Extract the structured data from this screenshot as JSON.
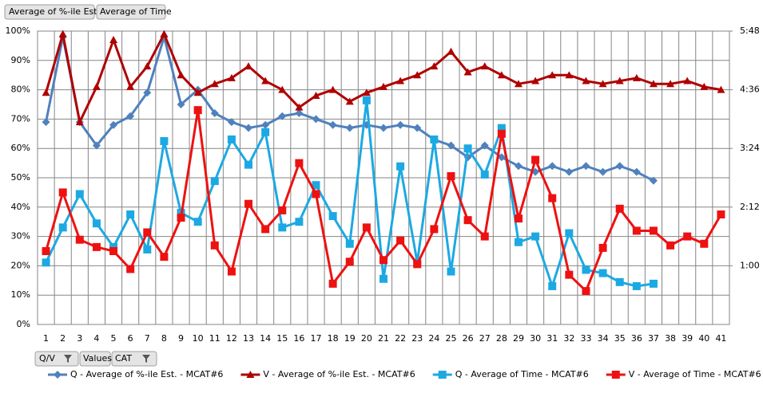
{
  "field_buttons": {
    "data": [
      "Average of %-ile Est.",
      "Average of Time"
    ],
    "axis": [
      "Q/V",
      "Values",
      "CAT"
    ]
  },
  "chart_data": {
    "type": "line",
    "categories": [
      "1",
      "2",
      "3",
      "4",
      "5",
      "6",
      "7",
      "8",
      "9",
      "10",
      "11",
      "12",
      "13",
      "14",
      "15",
      "16",
      "17",
      "18",
      "19",
      "20",
      "21",
      "22",
      "23",
      "24",
      "25",
      "26",
      "27",
      "28",
      "29",
      "30",
      "31",
      "32",
      "33",
      "34",
      "35",
      "36",
      "37",
      "38",
      "39",
      "40",
      "41"
    ],
    "ylim": [
      0,
      100
    ],
    "yticks": [
      {
        "value": 0,
        "label": "0%"
      },
      {
        "value": 10,
        "label": "10%"
      },
      {
        "value": 20,
        "label": "20%"
      },
      {
        "value": 30,
        "label": "30%"
      },
      {
        "value": 40,
        "label": "40%"
      },
      {
        "value": 50,
        "label": "50%"
      },
      {
        "value": 60,
        "label": "60%"
      },
      {
        "value": 70,
        "label": "70%"
      },
      {
        "value": 80,
        "label": "80%"
      },
      {
        "value": 90,
        "label": "90%"
      },
      {
        "value": 100,
        "label": "100%"
      }
    ],
    "y2lim": [
      -12,
      348
    ],
    "y2ticks": [
      {
        "value": 60,
        "label": "1:00"
      },
      {
        "value": 132,
        "label": "2:12"
      },
      {
        "value": 204,
        "label": "3:24"
      },
      {
        "value": 276,
        "label": "4:36"
      },
      {
        "value": 348,
        "label": "5:48"
      }
    ],
    "grid": true,
    "legend": "bottom",
    "series": [
      {
        "name": "Q - Average of %-ile Est. - MCAT#6",
        "color": "#4f81bd",
        "marker": "diamond",
        "values": [
          69,
          98,
          69,
          61,
          68,
          71,
          79,
          98,
          75,
          80,
          72,
          69,
          67,
          68,
          71,
          72,
          70,
          68,
          67,
          68,
          67,
          68,
          67,
          63,
          61,
          57,
          61,
          57,
          54,
          52,
          54,
          52,
          54,
          52,
          54,
          52,
          49,
          null,
          null,
          null,
          null
        ]
      },
      {
        "name": "V - Average of %-ile Est. - MCAT#6",
        "color": "#b00000",
        "marker": "triangle",
        "values": [
          79,
          99,
          69,
          81,
          97,
          81,
          88,
          99,
          85,
          79,
          82,
          84,
          88,
          83,
          80,
          74,
          78,
          80,
          76,
          79,
          81,
          83,
          85,
          88,
          93,
          86,
          88,
          85,
          82,
          83,
          85,
          85,
          83,
          82,
          83,
          84,
          82,
          82,
          83,
          81,
          80
        ]
      },
      {
        "name": "Q - Average of Time - MCAT#6",
        "color": "#1ca9e3",
        "marker": "square",
        "axis": "y2",
        "values": [
          64,
          107,
          148,
          112,
          83,
          123,
          80,
          213,
          125,
          114,
          164,
          215,
          184,
          224,
          107,
          114,
          159,
          121,
          87,
          263,
          44,
          182,
          64,
          215,
          53,
          204,
          172,
          229,
          89,
          96,
          35,
          100,
          55,
          51,
          40,
          35,
          38,
          null,
          null,
          null,
          null
        ]
      },
      {
        "name": "V - Average of Time - MCAT#6",
        "color": "#ee1111",
        "marker": "square",
        "axis": "y2",
        "values": [
          78,
          150,
          92,
          83,
          78,
          56,
          101,
          71,
          119,
          251,
          85,
          53,
          136,
          105,
          128,
          186,
          148,
          38,
          65,
          107,
          67,
          91,
          62,
          105,
          170,
          116,
          96,
          222,
          118,
          190,
          143,
          49,
          29,
          82,
          130,
          103,
          103,
          85,
          96,
          87,
          123
        ]
      }
    ]
  }
}
